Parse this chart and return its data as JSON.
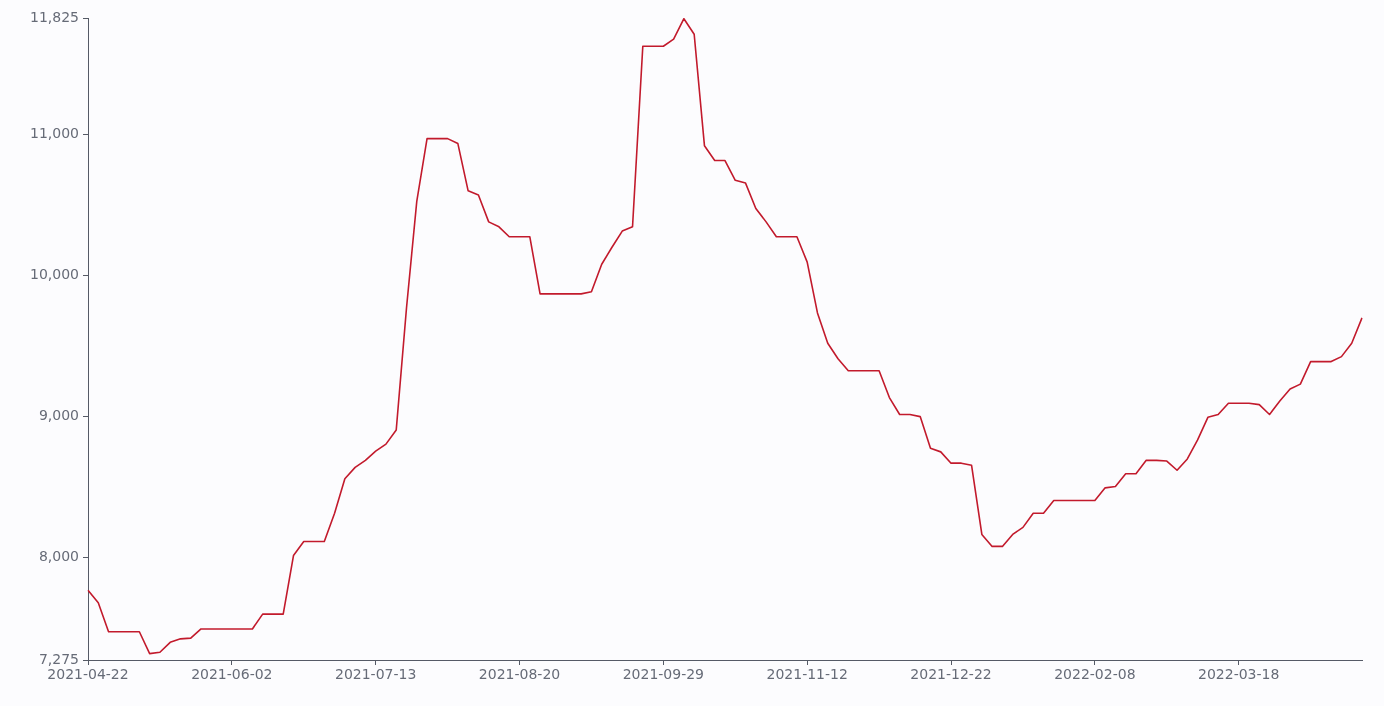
{
  "chart_data": {
    "type": "line",
    "marker": "none",
    "categories": [
      "2021-04-22",
      null,
      null,
      null,
      null,
      null,
      null,
      null,
      null,
      null,
      null,
      null,
      null,
      null,
      "2021-06-02",
      null,
      null,
      null,
      null,
      null,
      null,
      null,
      null,
      null,
      null,
      null,
      null,
      null,
      "2021-07-13",
      null,
      null,
      null,
      null,
      null,
      null,
      null,
      null,
      null,
      null,
      null,
      null,
      null,
      "2021-08-20",
      null,
      null,
      null,
      null,
      null,
      null,
      null,
      null,
      null,
      null,
      null,
      null,
      null,
      "2021-09-29",
      null,
      null,
      null,
      null,
      null,
      null,
      null,
      null,
      null,
      null,
      null,
      null,
      null,
      "2021-11-12",
      null,
      null,
      null,
      null,
      null,
      null,
      null,
      null,
      null,
      null,
      null,
      null,
      null,
      "2021-12-22",
      null,
      null,
      null,
      null,
      null,
      null,
      null,
      null,
      null,
      null,
      null,
      null,
      null,
      "2022-02-08",
      null,
      null,
      null,
      null,
      null,
      null,
      null,
      null,
      null,
      null,
      null,
      null,
      null,
      "2022-03-18",
      null,
      null,
      null,
      null,
      null,
      null,
      null,
      null,
      null,
      null,
      null,
      null
    ],
    "values": [
      7770,
      7680,
      7475,
      7475,
      7475,
      7475,
      7320,
      7330,
      7400,
      7425,
      7430,
      7495,
      7495,
      7495,
      7495,
      7495,
      7495,
      7600,
      7600,
      7600,
      8015,
      8115,
      8115,
      8115,
      8315,
      8560,
      8640,
      8690,
      8755,
      8805,
      8905,
      9770,
      10525,
      10970,
      10970,
      10970,
      10935,
      10600,
      10570,
      10380,
      10345,
      10275,
      10275,
      10275,
      9870,
      9870,
      9870,
      9870,
      9870,
      9885,
      10080,
      10200,
      10315,
      10345,
      11625,
      11625,
      11625,
      11675,
      11820,
      11710,
      10920,
      10815,
      10815,
      10675,
      10655,
      10475,
      10380,
      10275,
      10275,
      10275,
      10095,
      9735,
      9520,
      9410,
      9325,
      9325,
      9325,
      9325,
      9135,
      9015,
      9015,
      9000,
      8775,
      8750,
      8670,
      8670,
      8655,
      8165,
      8080,
      8080,
      8165,
      8215,
      8315,
      8315,
      8405,
      8405,
      8405,
      8405,
      8405,
      8495,
      8505,
      8595,
      8595,
      8690,
      8690,
      8685,
      8620,
      8700,
      8835,
      8995,
      9015,
      9095,
      9095,
      9095,
      9085,
      9015,
      9110,
      9195,
      9230,
      9390,
      9390,
      9390,
      9425,
      9520,
      9700
    ],
    "color": "#c21a2c",
    "ylim": [
      7275,
      11825
    ],
    "yticks": [
      {
        "value": 7275,
        "label": "7,275"
      },
      {
        "value": 8000,
        "label": "8,000"
      },
      {
        "value": 9000,
        "label": "9,000"
      },
      {
        "value": 10000,
        "label": "10,000"
      },
      {
        "value": 11000,
        "label": "11,000"
      },
      {
        "value": 11825,
        "label": "11,825"
      }
    ]
  }
}
